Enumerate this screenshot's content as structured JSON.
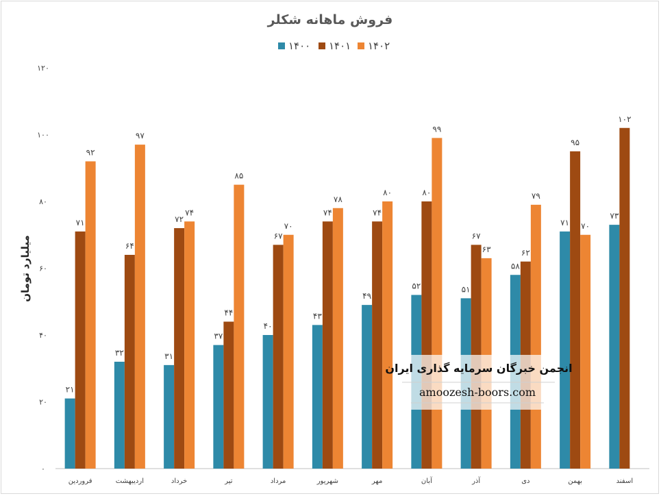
{
  "chart_data": {
    "type": "bar",
    "title": "فروش ماهانه شکلر",
    "ylabel": "میلیارد تومان",
    "xlabel": "",
    "ylim": [
      0,
      120
    ],
    "yticks": [
      "۰",
      "۲۰",
      "۴۰",
      "۶۰",
      "۸۰",
      "۱۰۰",
      "۱۲۰"
    ],
    "ytick_values": [
      0,
      20,
      40,
      60,
      80,
      100,
      120
    ],
    "grid": false,
    "legend_position": "top",
    "categories": [
      "فروردین",
      "اردیبهشت",
      "خرداد",
      "تیر",
      "مرداد",
      "شهریور",
      "مهر",
      "آبان",
      "آذر",
      "دی",
      "بهمن",
      "اسفند"
    ],
    "series": [
      {
        "name": "۱۴۰۰",
        "color": "#2e8aa8",
        "values": [
          21,
          32,
          31,
          37,
          40,
          43,
          49,
          52,
          51,
          58,
          71,
          73
        ],
        "labels": [
          "۲۱",
          "۳۲",
          "۳۱",
          "۳۷",
          "۴۰",
          "۴۳",
          "۴۹",
          "۵۲",
          "۵۱",
          "۵۸",
          "۷۱",
          "۷۳"
        ]
      },
      {
        "name": "۱۴۰۱",
        "color": "#9e4a12",
        "values": [
          71,
          64,
          72,
          44,
          67,
          74,
          74,
          80,
          67,
          62,
          95,
          102
        ],
        "labels": [
          "۷۱",
          "۶۴",
          "۷۲",
          "۴۴",
          "۶۷",
          "۷۴",
          "۷۴",
          "۸۰",
          "۶۷",
          "۶۲",
          "۹۵",
          "۱۰۲"
        ]
      },
      {
        "name": "۱۴۰۲",
        "color": "#ed8533",
        "values": [
          92,
          97,
          74,
          85,
          70,
          78,
          80,
          99,
          63,
          79,
          70,
          null
        ],
        "labels": [
          "۹۲",
          "۹۷",
          "۷۴",
          "۸۵",
          "۷۰",
          "۷۸",
          "۸۰",
          "۹۹",
          "۶۳",
          "۷۹",
          "۷۰",
          null
        ]
      }
    ]
  },
  "watermark": {
    "line1": "انجمن خبرگان سرمایه گذاری ایران",
    "line2": "amoozesh-boors.com"
  }
}
